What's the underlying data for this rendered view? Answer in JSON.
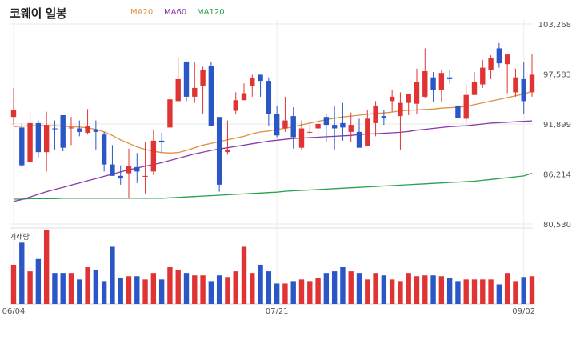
{
  "chart_data": {
    "type": "candlestick",
    "title": "코웨이 일봉",
    "legend": [
      {
        "name": "MA20",
        "color": "#e09040"
      },
      {
        "name": "MA60",
        "color": "#8a3aa8"
      },
      {
        "name": "MA120",
        "color": "#2aa24a"
      }
    ],
    "colors": {
      "up": "#e03434",
      "down": "#2a56c6"
    },
    "y_ticks": [
      "103,268",
      "97,583",
      "91,899",
      "86,214",
      "80,530"
    ],
    "ylim": [
      80530,
      103268
    ],
    "x_ticks": [
      {
        "label": "06/04",
        "index": 0
      },
      {
        "label": "07/21",
        "index": 32
      },
      {
        "label": "09/02",
        "index": 62
      }
    ],
    "volume_label": "거래량",
    "candles": [
      [
        92700,
        93500,
        96000,
        91800
      ],
      [
        91500,
        87200,
        92000,
        87000
      ],
      [
        87600,
        92000,
        93200,
        87500
      ],
      [
        92000,
        88700,
        92300,
        88000
      ],
      [
        88700,
        91800,
        93300,
        86500
      ],
      [
        91400,
        91300,
        92300,
        89000
      ],
      [
        92900,
        89200,
        92800,
        88800
      ],
      [
        91400,
        91500,
        92700,
        89500
      ],
      [
        91400,
        91000,
        92300,
        90500
      ],
      [
        90900,
        91700,
        93600,
        90700
      ],
      [
        91300,
        91000,
        92300,
        89000
      ],
      [
        90700,
        87300,
        91000,
        86500
      ],
      [
        87300,
        86000,
        89500,
        86500
      ],
      [
        86000,
        85700,
        87200,
        85000
      ],
      [
        86300,
        87100,
        89100,
        83400
      ],
      [
        87000,
        86500,
        88600,
        85200
      ],
      [
        85900,
        86000,
        89800,
        84000
      ],
      [
        86500,
        90000,
        91300,
        86100
      ],
      [
        90000,
        89800,
        90900,
        88600
      ],
      [
        91500,
        94700,
        95100,
        91500
      ],
      [
        94500,
        97000,
        99500,
        96000
      ],
      [
        99000,
        95000,
        99000,
        94500
      ],
      [
        95000,
        96000,
        98900,
        94300
      ],
      [
        96200,
        98000,
        98400,
        93000
      ],
      [
        98500,
        91700,
        99000,
        91700
      ],
      [
        92700,
        85000,
        92500,
        84200
      ],
      [
        88700,
        89000,
        92300,
        88400
      ],
      [
        93400,
        94600,
        95500,
        93000
      ],
      [
        94600,
        95400,
        96500,
        95000
      ],
      [
        96200,
        97100,
        97500,
        95000
      ],
      [
        97500,
        96800,
        97300,
        95000
      ],
      [
        96800,
        93000,
        97200,
        91700
      ],
      [
        93000,
        90600,
        94000,
        90400
      ],
      [
        91400,
        92300,
        95000,
        91000
      ],
      [
        92800,
        90400,
        93800,
        89100
      ],
      [
        89200,
        91400,
        92300,
        88900
      ],
      [
        91000,
        91000,
        91800,
        90700
      ],
      [
        91400,
        91900,
        92600,
        90500
      ],
      [
        92700,
        91800,
        93000,
        89900
      ],
      [
        91800,
        91400,
        94000,
        89000
      ],
      [
        92000,
        91500,
        94300,
        90000
      ],
      [
        91000,
        91800,
        93200,
        89900
      ],
      [
        91000,
        89200,
        92500,
        89300
      ],
      [
        89400,
        92500,
        93500,
        92000
      ],
      [
        92000,
        94000,
        94500,
        90500
      ],
      [
        92800,
        92600,
        93500,
        91800
      ],
      [
        94500,
        95000,
        95800,
        93300
      ],
      [
        92800,
        94300,
        95500,
        88900
      ],
      [
        94300,
        95300,
        94800,
        92900
      ],
      [
        94200,
        96700,
        98200,
        93000
      ],
      [
        95000,
        97900,
        100500,
        94800
      ],
      [
        97200,
        95800,
        97800,
        94400
      ],
      [
        95800,
        97700,
        98000,
        94400
      ],
      [
        97200,
        97000,
        98000,
        96500
      ],
      [
        94000,
        92600,
        93600,
        92000
      ],
      [
        92500,
        95200,
        96400,
        92000
      ],
      [
        95200,
        96700,
        97800,
        95200
      ],
      [
        96400,
        98300,
        99200,
        96000
      ],
      [
        98000,
        99400,
        99700,
        97000
      ],
      [
        100500,
        98800,
        101100,
        98300
      ],
      [
        98700,
        99800,
        99700,
        95400
      ],
      [
        95500,
        97200,
        98200,
        95000
      ],
      [
        97000,
        94500,
        98900,
        93000
      ],
      [
        95500,
        97500,
        99800,
        95000
      ]
    ],
    "volume": [
      48,
      75,
      40,
      55,
      90,
      38,
      38,
      38,
      30,
      45,
      42,
      28,
      70,
      32,
      34,
      34,
      30,
      38,
      30,
      45,
      42,
      38,
      35,
      35,
      28,
      35,
      33,
      40,
      70,
      38,
      48,
      40,
      25,
      25,
      28,
      30,
      28,
      32,
      38,
      40,
      45,
      40,
      38,
      30,
      38,
      35,
      30,
      28,
      38,
      34,
      35,
      35,
      34,
      32,
      28,
      30,
      30,
      30,
      30,
      24,
      38,
      28,
      33,
      34
    ],
    "ma20": [
      91600,
      91650,
      91700,
      91720,
      91720,
      91700,
      91650,
      91600,
      91550,
      91450,
      91300,
      91000,
      90600,
      90100,
      89700,
      89300,
      89000,
      88800,
      88650,
      88600,
      88650,
      88900,
      89200,
      89500,
      89700,
      89900,
      90100,
      90300,
      90500,
      90800,
      91000,
      91100,
      91300,
      91400,
      91600,
      91800,
      92000,
      92200,
      92400,
      92550,
      92700,
      92800,
      92900,
      93000,
      93100,
      93150,
      93250,
      93400,
      93450,
      93500,
      93550,
      93600,
      93700,
      93750,
      93800,
      93900,
      94100,
      94300,
      94500,
      94700,
      94900,
      95100,
      95300,
      95600
    ],
    "ma60": [
      83100,
      83300,
      83600,
      83900,
      84200,
      84450,
      84700,
      84950,
      85200,
      85450,
      85700,
      85950,
      86200,
      86450,
      86700,
      86900,
      87100,
      87300,
      87500,
      87750,
      88000,
      88250,
      88500,
      88700,
      88900,
      89050,
      89200,
      89350,
      89500,
      89650,
      89800,
      89950,
      90050,
      90150,
      90250,
      90300,
      90350,
      90400,
      90450,
      90500,
      90550,
      90600,
      90700,
      90750,
      90800,
      90850,
      90900,
      90950,
      91050,
      91200,
      91300,
      91400,
      91500,
      91600,
      91650,
      91700,
      91800,
      91900,
      92000,
      92050,
      92100,
      92150,
      92200,
      92250
    ],
    "ma120": [
      83350,
      83350,
      83400,
      83400,
      83400,
      83400,
      83450,
      83450,
      83450,
      83450,
      83450,
      83450,
      83450,
      83450,
      83450,
      83450,
      83450,
      83450,
      83450,
      83500,
      83550,
      83600,
      83650,
      83700,
      83750,
      83800,
      83850,
      83900,
      83950,
      84000,
      84050,
      84100,
      84150,
      84250,
      84300,
      84350,
      84400,
      84450,
      84500,
      84550,
      84600,
      84650,
      84700,
      84750,
      84800,
      84850,
      84900,
      84950,
      85000,
      85050,
      85100,
      85150,
      85200,
      85250,
      85300,
      85350,
      85400,
      85500,
      85600,
      85700,
      85800,
      85900,
      86000,
      86300
    ]
  }
}
